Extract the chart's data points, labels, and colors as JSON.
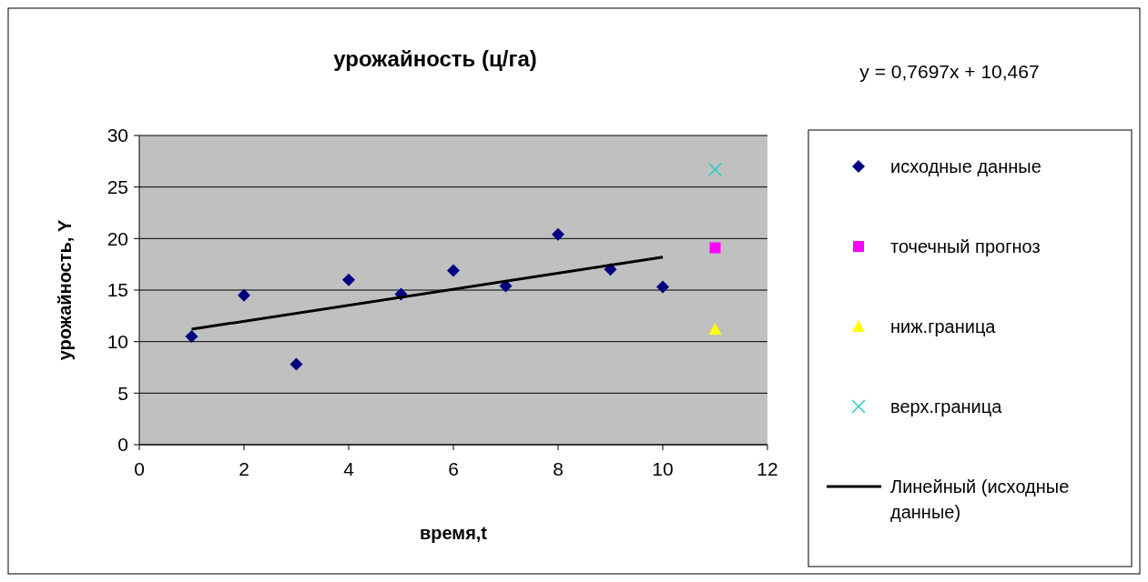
{
  "chart_data": {
    "type": "scatter",
    "title": "урожайность (ц/га)",
    "xlabel": "время,t",
    "ylabel": "урожайность, Y",
    "annotations": [
      "y = 0,7697x + 10,467"
    ],
    "xlim": [
      0,
      12
    ],
    "xticks": [
      0,
      2,
      4,
      6,
      8,
      10,
      12
    ],
    "ylim": [
      0,
      30
    ],
    "yticks": [
      0,
      5,
      10,
      15,
      20,
      25,
      30
    ],
    "grid": "y",
    "legend": "right",
    "series": [
      {
        "name": "исходные данные",
        "marker": "diamond",
        "color": "#000080",
        "x": [
          1,
          2,
          3,
          4,
          5,
          6,
          7,
          8,
          9,
          10
        ],
        "values": [
          10.5,
          14.5,
          7.8,
          16,
          14.6,
          16.9,
          15.4,
          20.4,
          17,
          15.3
        ]
      },
      {
        "name": "точечный прогноз",
        "marker": "square",
        "color": "#ff00ff",
        "x": [
          11
        ],
        "values": [
          19.1
        ]
      },
      {
        "name": "ниж.граница",
        "marker": "triangle",
        "color": "#ffff00",
        "x": [
          11
        ],
        "values": [
          11.2
        ]
      },
      {
        "name": "верх.граница",
        "marker": "cross",
        "color": "#33cccc",
        "x": [
          11
        ],
        "values": [
          26.7
        ]
      },
      {
        "name": "Линейный (исходные данные)",
        "type": "line",
        "marker": "none",
        "line_style": "solid",
        "color": "#000000",
        "x": [
          1,
          10
        ],
        "values": [
          11.2,
          18.2
        ]
      }
    ]
  }
}
